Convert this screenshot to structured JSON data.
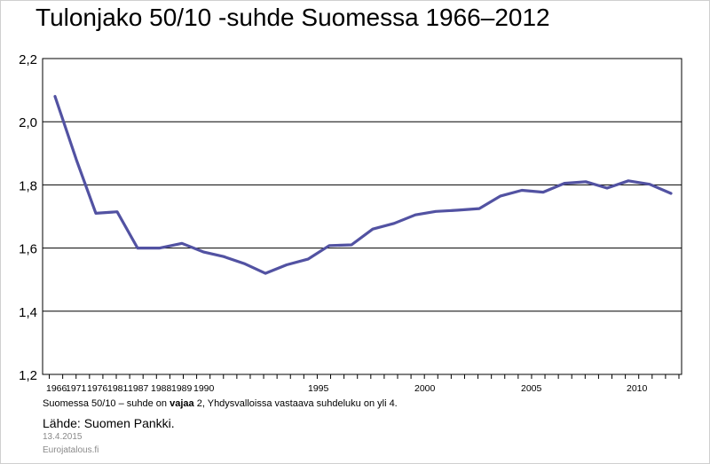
{
  "chart_data": {
    "type": "line",
    "title": "Tulonjako 50/10 -suhde Suomessa 1966–2012",
    "xlabel": "",
    "ylabel": "",
    "ylim": [
      1.2,
      2.2
    ],
    "yticks": [
      "1,2",
      "1,4",
      "1,6",
      "1,8",
      "2,0",
      "2,2"
    ],
    "ytick_values": [
      1.2,
      1.4,
      1.6,
      1.8,
      2.0,
      2.2
    ],
    "xticks": [
      "1966",
      "1971",
      "1976",
      "1981",
      "1987",
      "1988",
      "1989",
      "1990",
      "1995",
      "2000",
      "2005",
      "2010"
    ],
    "categories": [
      "1966",
      "1971",
      "1976",
      "1981",
      "1987",
      "1988",
      "1989",
      "1990",
      "1991",
      "1992",
      "1993",
      "1994",
      "1995",
      "1996",
      "1997",
      "1998",
      "1999",
      "2000",
      "2001",
      "2002",
      "2003",
      "2004",
      "2005",
      "2006",
      "2007",
      "2008",
      "2009",
      "2010",
      "2011",
      "2012"
    ],
    "values": [
      2.08,
      1.88,
      1.71,
      1.715,
      1.6,
      1.6,
      1.615,
      1.588,
      1.573,
      1.55,
      1.52,
      1.547,
      1.565,
      1.608,
      1.61,
      1.66,
      1.678,
      1.705,
      1.716,
      1.72,
      1.725,
      1.765,
      1.783,
      1.777,
      1.805,
      1.81,
      1.79,
      1.813,
      1.802,
      1.773
    ],
    "grid": true,
    "line_color": "#5252a2"
  },
  "footer": {
    "note_before": "Suomessa 50/10 – suhde on ",
    "note_bold": "vajaa",
    "note_after": " 2, Yhdysvalloissa vastaava suhdeluku on yli 4.",
    "source": "Lähde: Suomen Pankki.",
    "date": "13.4.2015",
    "site": "Eurojatalous.fi"
  }
}
